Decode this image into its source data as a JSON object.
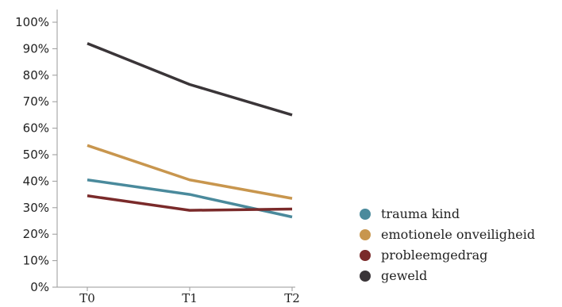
{
  "chart_data": {
    "type": "line",
    "categories": [
      "T0",
      "T1",
      "T2"
    ],
    "y_ticks": [
      "0%",
      "10%",
      "20%",
      "30%",
      "40%",
      "50%",
      "60%",
      "70%",
      "80%",
      "90%",
      "100%"
    ],
    "ylim": [
      0,
      100
    ],
    "grid": false,
    "legend_position": "bottom-right",
    "series": [
      {
        "name": "trauma kind",
        "color": "#4a8a9c",
        "values": [
          40.5,
          35,
          26.5
        ]
      },
      {
        "name": "emotionele onveiligheid",
        "color": "#c8964e",
        "values": [
          53.5,
          40.5,
          33.5
        ]
      },
      {
        "name": "probleemgedrag",
        "color": "#7a2a2a",
        "values": [
          34.5,
          29,
          29.5
        ]
      },
      {
        "name": "geweld",
        "color": "#3a3538",
        "values": [
          92,
          76.5,
          65
        ]
      }
    ],
    "title": "",
    "xlabel": "",
    "ylabel": ""
  }
}
